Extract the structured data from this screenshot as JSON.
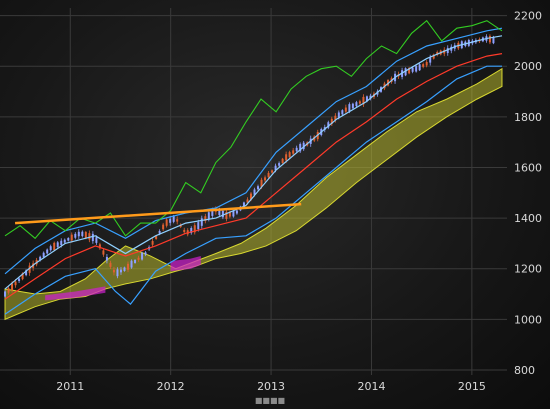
{
  "chart_data": {
    "type": "line",
    "title": "",
    "xlabel": "",
    "ylabel": "",
    "x_ticks": [
      "2011",
      "2012",
      "2013",
      "2014",
      "2015"
    ],
    "y_ticks": [
      800,
      1000,
      1200,
      1400,
      1600,
      1800,
      2000,
      2200
    ],
    "ylim": [
      780,
      2230
    ],
    "xlim": [
      2010.55,
      2015.6
    ],
    "grid": true,
    "footer_text": "■■■■",
    "colors": {
      "candle_up": "#8ea0ff",
      "candle_down": "#e06030",
      "upper_band": "#38a0ff",
      "lower_band": "#38a0ff",
      "inner_upper": "#8fd0ff",
      "red_line": "#ff3a2a",
      "green_line": "#33cc22",
      "cloud_fill": "#d8d830",
      "cloud_bear_fill": "#d020d0",
      "trendline": "#ff9a1a",
      "grid": "#3a3a3a",
      "axis_text": "#d8d8d8"
    },
    "price": {
      "x": [
        2010.6,
        2010.75,
        2010.9,
        2011.05,
        2011.2,
        2011.35,
        2011.5,
        2011.6,
        2011.7,
        2011.8,
        2011.9,
        2012.0,
        2012.1,
        2012.2,
        2012.3,
        2012.4,
        2012.5,
        2012.6,
        2012.7,
        2012.8,
        2012.9,
        2013.0,
        2013.1,
        2013.2,
        2013.3,
        2013.4,
        2013.5,
        2013.6,
        2013.7,
        2013.8,
        2013.9,
        2014.0,
        2014.1,
        2014.2,
        2014.3,
        2014.4,
        2014.5,
        2014.6,
        2014.7,
        2014.8,
        2014.9,
        2015.0,
        2015.1,
        2015.2,
        2015.3,
        2015.4,
        2015.5
      ],
      "y": [
        1100,
        1160,
        1220,
        1280,
        1310,
        1340,
        1320,
        1250,
        1180,
        1200,
        1230,
        1260,
        1320,
        1380,
        1400,
        1340,
        1360,
        1400,
        1430,
        1410,
        1420,
        1460,
        1510,
        1560,
        1600,
        1640,
        1670,
        1690,
        1720,
        1760,
        1800,
        1830,
        1850,
        1870,
        1890,
        1930,
        1960,
        1980,
        1990,
        2010,
        2050,
        2060,
        2080,
        2090,
        2100,
        2110,
        2100
      ]
    },
    "series": [
      {
        "name": "",
        "key": "upper_band",
        "x": [
          2010.6,
          2010.9,
          2011.2,
          2011.5,
          2011.8,
          2012.1,
          2012.4,
          2012.7,
          2013.0,
          2013.3,
          2013.6,
          2013.9,
          2014.2,
          2014.5,
          2014.8,
          2015.1,
          2015.4,
          2015.55
        ],
        "y": [
          1180,
          1280,
          1350,
          1380,
          1320,
          1390,
          1420,
          1440,
          1500,
          1660,
          1760,
          1860,
          1920,
          2020,
          2080,
          2110,
          2140,
          2150
        ]
      },
      {
        "name": "",
        "key": "inner_upper",
        "x": [
          2010.6,
          2010.9,
          2011.2,
          2011.5,
          2011.8,
          2012.1,
          2012.4,
          2012.7,
          2013.0,
          2013.3,
          2013.6,
          2013.9,
          2014.2,
          2014.5,
          2014.8,
          2015.1,
          2015.4,
          2015.55
        ],
        "y": [
          1120,
          1220,
          1300,
          1330,
          1260,
          1330,
          1380,
          1400,
          1450,
          1590,
          1690,
          1790,
          1860,
          1960,
          2030,
          2080,
          2110,
          2120
        ]
      },
      {
        "name": "",
        "key": "red_line",
        "x": [
          2010.6,
          2010.9,
          2011.2,
          2011.5,
          2011.8,
          2012.1,
          2012.4,
          2012.7,
          2013.0,
          2013.3,
          2013.6,
          2013.9,
          2014.2,
          2014.5,
          2014.8,
          2015.1,
          2015.4,
          2015.55
        ],
        "y": [
          1080,
          1160,
          1240,
          1290,
          1250,
          1290,
          1340,
          1370,
          1400,
          1500,
          1600,
          1700,
          1780,
          1870,
          1940,
          2000,
          2040,
          2050
        ]
      },
      {
        "name": "",
        "key": "lower_band",
        "x": [
          2010.6,
          2010.9,
          2011.2,
          2011.5,
          2011.7,
          2011.85,
          2012.1,
          2012.4,
          2012.7,
          2013.0,
          2013.3,
          2013.6,
          2013.9,
          2014.2,
          2014.5,
          2014.8,
          2015.1,
          2015.4,
          2015.55
        ],
        "y": [
          1020,
          1100,
          1170,
          1200,
          1110,
          1060,
          1190,
          1260,
          1320,
          1330,
          1400,
          1500,
          1600,
          1700,
          1780,
          1860,
          1950,
          2000,
          2000
        ]
      },
      {
        "name": "",
        "key": "green_line",
        "x": [
          2010.6,
          2010.75,
          2010.9,
          2011.05,
          2011.2,
          2011.35,
          2011.5,
          2011.65,
          2011.8,
          2011.95,
          2012.1,
          2012.25,
          2012.4,
          2012.55,
          2012.7,
          2012.85,
          2013.0,
          2013.15,
          2013.3,
          2013.45,
          2013.6,
          2013.75,
          2013.9,
          2014.05,
          2014.2,
          2014.35,
          2014.5,
          2014.65,
          2014.8,
          2014.95,
          2015.1,
          2015.25,
          2015.4,
          2015.55
        ],
        "y": [
          1330,
          1370,
          1320,
          1390,
          1350,
          1400,
          1380,
          1420,
          1330,
          1380,
          1380,
          1430,
          1540,
          1500,
          1620,
          1680,
          1780,
          1870,
          1820,
          1910,
          1960,
          1990,
          2000,
          1960,
          2030,
          2080,
          2050,
          2130,
          2180,
          2100,
          2150,
          2160,
          2180,
          2140
        ]
      }
    ],
    "cloud": {
      "x": [
        2010.6,
        2010.9,
        2011.15,
        2011.4,
        2011.6,
        2011.8,
        2012.05,
        2012.3,
        2012.5,
        2012.7,
        2012.95,
        2013.2,
        2013.5,
        2013.8,
        2014.1,
        2014.4,
        2014.7,
        2015.0,
        2015.3,
        2015.55
      ],
      "top": [
        1120,
        1100,
        1110,
        1160,
        1230,
        1290,
        1250,
        1200,
        1230,
        1260,
        1300,
        1360,
        1450,
        1560,
        1650,
        1740,
        1820,
        1870,
        1930,
        1990
      ],
      "bottom": [
        1000,
        1050,
        1080,
        1090,
        1120,
        1140,
        1160,
        1190,
        1210,
        1240,
        1260,
        1290,
        1350,
        1440,
        1540,
        1630,
        1720,
        1800,
        1870,
        1920
      ]
    },
    "trendline": {
      "x": [
        2010.7,
        2013.55
      ],
      "y": [
        1380,
        1455
      ]
    }
  }
}
